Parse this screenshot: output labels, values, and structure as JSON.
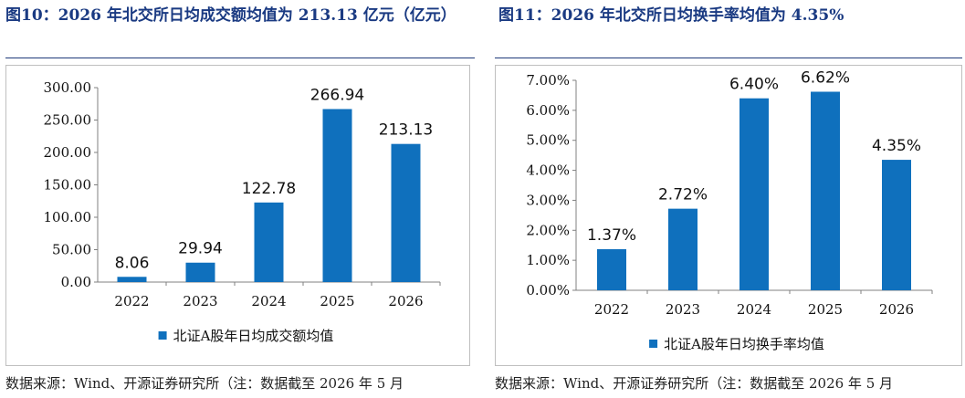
{
  "figures": [
    {
      "title": "图10：2026 年北交所日均成交额均值为 213.13 亿元（亿元）",
      "source": "数据来源：Wind、开源证券研究所（注：数据截至 2026 年 5 月",
      "chart_data": {
        "type": "bar",
        "title": "",
        "xlabel": "",
        "ylabel": "",
        "categories": [
          "2022",
          "2023",
          "2024",
          "2025",
          "2026"
        ],
        "series": [
          {
            "name": "北证A股年日均成交额均值",
            "values": [
              8.06,
              29.94,
              122.78,
              266.94,
              213.13
            ],
            "color": "#0f70bd"
          }
        ],
        "data_labels": [
          "8.06",
          "29.94",
          "122.78",
          "266.94",
          "213.13"
        ],
        "ylim": [
          0,
          300
        ],
        "yticks": [
          0,
          50,
          100,
          150,
          200,
          250,
          300
        ],
        "ytick_labels": [
          "0.00",
          "50.00",
          "100.00",
          "150.00",
          "200.00",
          "250.00",
          "300.00"
        ],
        "grid": false,
        "legend_position": "bottom"
      }
    },
    {
      "title": "图11：2026 年北交所日均换手率均值为 4.35%",
      "source": "数据来源：Wind、开源证券研究所（注：数据截至 2026 年 5 月",
      "chart_data": {
        "type": "bar",
        "title": "",
        "xlabel": "",
        "ylabel": "",
        "categories": [
          "2022",
          "2023",
          "2024",
          "2025",
          "2026"
        ],
        "series": [
          {
            "name": "北证A股年日均换手率均值",
            "values": [
              1.37,
              2.72,
              6.4,
              6.62,
              4.35
            ],
            "color": "#0f70bd"
          }
        ],
        "data_labels": [
          "1.37%",
          "2.72%",
          "6.40%",
          "6.62%",
          "4.35%"
        ],
        "ylim": [
          0,
          7
        ],
        "yticks": [
          0,
          1,
          2,
          3,
          4,
          5,
          6,
          7
        ],
        "ytick_labels": [
          "0.00%",
          "1.00%",
          "2.00%",
          "3.00%",
          "4.00%",
          "5.00%",
          "6.00%",
          "7.00%"
        ],
        "grid": false,
        "legend_position": "bottom"
      }
    }
  ]
}
